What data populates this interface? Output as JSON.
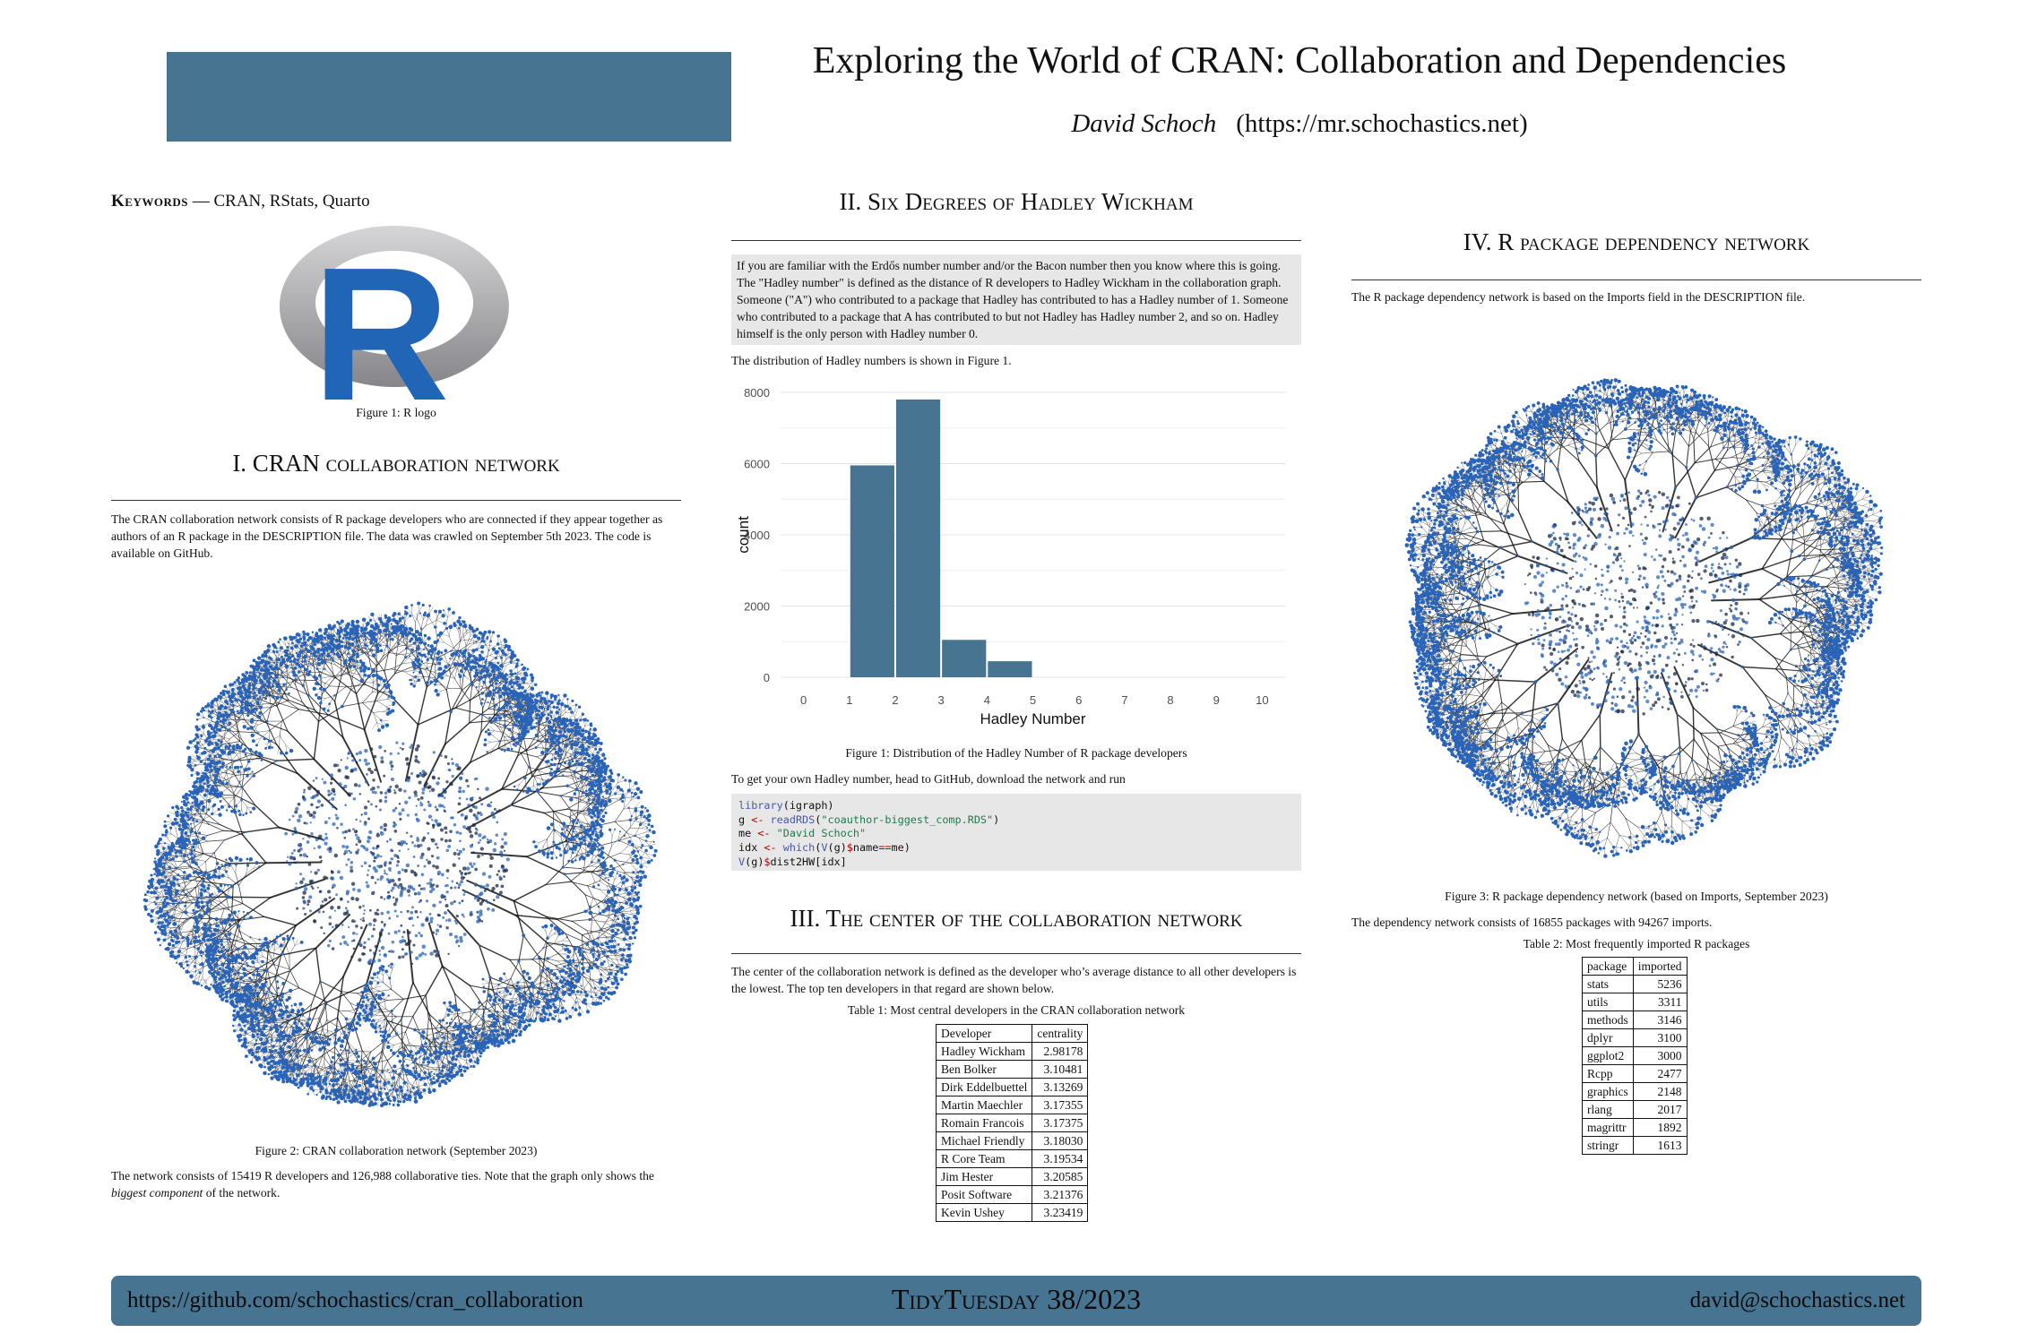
{
  "header": {
    "title": "Exploring the World of CRAN: Collaboration and Dependencies",
    "author_name": "David Schoch",
    "author_url": "(https://mr.schochastics.net)"
  },
  "keywords": {
    "label": "Keywords",
    "sep": " — ",
    "text": "CRAN, RStats, Quarto"
  },
  "logo": {
    "letter": "R",
    "caption": "Figure 1:  R logo"
  },
  "colors": {
    "accent": "#477490",
    "r_blue": "#2165B6",
    "code_bg": "#e7e7e7"
  },
  "section1": {
    "heading": "I. CRAN collaboration network",
    "intro": "The CRAN collaboration network consists of R package developers who are connected if they appear together as authors of an R package in the DESCRIPTION file. The data was crawled on September 5th 2023. The code is available on GitHub.",
    "figure_caption": "Figure 2:  CRAN collaboration network (September 2023)",
    "outro_prefix": "The network consists of 15419 R developers and 126,988 collaborative ties. Note that the graph only shows the ",
    "outro_emph": "biggest component",
    "outro_suffix": " of the network."
  },
  "section2": {
    "heading": "II. Six Degrees of Hadley Wickham",
    "callout": "If you are familiar with the Erdős number number and/or the Bacon number then you know where this is going. The \"Hadley number\" is defined as the distance of R developers to Hadley Wickham in the collaboration graph. Someone (\"A\") who contributed to a package that Hadley has contributed to has a Hadley number of 1. Someone who contributed to a package that A has contributed to but not Hadley has Hadley number 2, and so on. Hadley himself is the only person with Hadley number 0.",
    "dist_text": "The distribution of Hadley numbers is shown in Figure 1.",
    "figure_caption": "Figure 1:  Distribution of the Hadley Number of R package developers",
    "get_text": "To get your own Hadley number, head to GitHub, download the network and run",
    "code": {
      "l1_fn": "library",
      "l1_rest": "(igraph)",
      "l2_var": "g ",
      "l2_op": "<-",
      "l2_fn": " readRDS",
      "l2_p1": "(",
      "l2_str": "\"coauthor-biggest_comp.RDS\"",
      "l2_p2": ")",
      "l3_var": "me ",
      "l3_op": "<-",
      "l3_str": " \"David Schoch\"",
      "l4_var": "idx ",
      "l4_op": "<-",
      "l4_fn": " which",
      "l4_p1": "(",
      "l4_fn2": "V",
      "l4_p2": "(g)",
      "l4_op2": "$",
      "l4_p3": "name",
      "l4_op3": "==",
      "l4_p4": "me)",
      "l5_fn": "V",
      "l5_p1": "(g)",
      "l5_op": "$",
      "l5_p2": "dist2HW[idx]"
    }
  },
  "chart_data": {
    "type": "bar",
    "title": "",
    "xlabel": "Hadley Number",
    "ylabel": "count",
    "categories": [
      "1",
      "2",
      "3",
      "4",
      "5",
      "6"
    ],
    "values": [
      0,
      5950,
      7800,
      1050,
      450,
      0
    ],
    "x_ticks": [
      "0",
      "1",
      "2",
      "3",
      "4",
      "5",
      "6",
      "7",
      "8",
      "9",
      "10"
    ],
    "y_ticks": [
      "0",
      "2000",
      "4000",
      "6000",
      "8000"
    ],
    "bins": [
      {
        "from": 1,
        "to": 2,
        "value": 5950
      },
      {
        "from": 2,
        "to": 3,
        "value": 7800
      },
      {
        "from": 3,
        "to": 4,
        "value": 1050
      },
      {
        "from": 4,
        "to": 5,
        "value": 450
      }
    ],
    "xlim": [
      -0.5,
      10.5
    ],
    "ylim": [
      0,
      8000
    ],
    "grid": true,
    "bar_color": "#477490"
  },
  "section3": {
    "heading": "III. The center of the collaboration network",
    "text": "The center of the collaboration network is defined as the developer who’s average distance to all other developers is the lowest. The top ten developers in that regard are shown below.",
    "table_caption": "Table 1:  Most central developers in the CRAN collaboration network",
    "columns": [
      "Developer",
      "centrality"
    ],
    "rows": [
      [
        "Hadley Wickham",
        "2.98178"
      ],
      [
        "Ben Bolker",
        "3.10481"
      ],
      [
        "Dirk Eddelbuettel",
        "3.13269"
      ],
      [
        "Martin Maechler",
        "3.17355"
      ],
      [
        "Romain Francois",
        "3.17375"
      ],
      [
        "Michael Friendly",
        "3.18030"
      ],
      [
        "R Core Team",
        "3.19534"
      ],
      [
        "Jim Hester",
        "3.20585"
      ],
      [
        "Posit Software",
        "3.21376"
      ],
      [
        "Kevin Ushey",
        "3.23419"
      ]
    ]
  },
  "section4": {
    "heading": "IV. R package dependency network",
    "intro": "The R package dependency network is based on the Imports field in the DESCRIPTION file.",
    "figure_caption": "Figure 3:  R package dependency network (based on Imports, September 2023)",
    "summary": "The dependency network consists of 16855 packages with 94267 imports.",
    "table_caption": "Table 2:  Most frequently imported R packages",
    "columns": [
      "package",
      "imported"
    ],
    "rows": [
      [
        "stats",
        "5236"
      ],
      [
        "utils",
        "3311"
      ],
      [
        "methods",
        "3146"
      ],
      [
        "dplyr",
        "3100"
      ],
      [
        "ggplot2",
        "3000"
      ],
      [
        "Rcpp",
        "2477"
      ],
      [
        "graphics",
        "2148"
      ],
      [
        "rlang",
        "2017"
      ],
      [
        "magrittr",
        "1892"
      ],
      [
        "stringr",
        "1613"
      ]
    ]
  },
  "footer": {
    "left": "https://github.com/schochastics/cran_collaboration",
    "center": "TidyTuesday 38/2023",
    "right": "david@schochastics.net"
  }
}
